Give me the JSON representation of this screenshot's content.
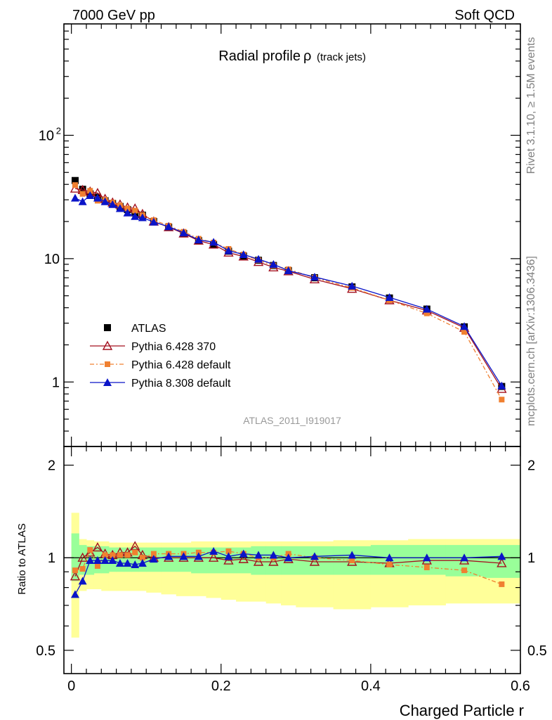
{
  "header": {
    "left_label": "7000 GeV pp",
    "right_label": "Soft QCD"
  },
  "side_labels": {
    "rivet": "Rivet 3.1.10, ≥ 1.5M events",
    "mcplots": "mcplots.cern.ch [arXiv:1306.3436]"
  },
  "analysis_id": "ATLAS_2011_I919017",
  "chart_data": [
    {
      "panel": "main",
      "type": "line",
      "title": "Radial profile",
      "title_symbol": "ρ",
      "title_suffix": "(track jets)",
      "y_scale": "log",
      "ylim": [
        0.3,
        800
      ],
      "xlim": [
        -0.01,
        0.6
      ],
      "y_tick_labels": [
        "1",
        "10",
        "10²"
      ],
      "legend_position": "middle-left",
      "x": [
        0.005,
        0.015,
        0.025,
        0.035,
        0.045,
        0.055,
        0.065,
        0.075,
        0.085,
        0.095,
        0.11,
        0.13,
        0.15,
        0.17,
        0.19,
        0.21,
        0.23,
        0.25,
        0.27,
        0.29,
        0.325,
        0.375,
        0.425,
        0.475,
        0.525,
        0.575
      ],
      "series": [
        {
          "name": "ATLAS",
          "color": "#000000",
          "marker": "square",
          "values": [
            43.0,
            36.5,
            33.5,
            31.5,
            29.5,
            28.0,
            26.5,
            25.0,
            23.5,
            22.5,
            20.0,
            18.0,
            16.0,
            14.0,
            13.0,
            11.5,
            10.5,
            9.7,
            8.8,
            8.0,
            7.0,
            5.9,
            4.8,
            3.9,
            2.8,
            0.92
          ]
        },
        {
          "name": "Pythia 6.428 370",
          "color": "#a3101f",
          "marker": "open-triangle",
          "values": [
            37.0,
            36.0,
            35.0,
            34.0,
            30.5,
            28.5,
            27.5,
            26.0,
            25.5,
            23.0,
            20.0,
            18.0,
            16.0,
            14.0,
            13.0,
            11.2,
            10.4,
            9.4,
            8.5,
            7.9,
            6.8,
            5.7,
            4.6,
            3.8,
            2.75,
            0.88
          ]
        },
        {
          "name": "Pythia 6.428 default",
          "color": "#f08030",
          "marker": "square-small",
          "values": [
            39.5,
            33.5,
            35.5,
            29.5,
            30.0,
            28.5,
            27.0,
            25.5,
            24.5,
            22.5,
            20.5,
            18.5,
            16.5,
            14.5,
            13.5,
            12.0,
            10.8,
            9.7,
            8.8,
            8.2,
            7.0,
            5.8,
            4.6,
            3.6,
            2.55,
            0.72
          ]
        },
        {
          "name": "Pythia 8.308 default",
          "color": "#0a14c8",
          "marker": "triangle",
          "values": [
            31.0,
            29.0,
            32.5,
            31.0,
            29.0,
            27.5,
            25.5,
            23.5,
            22.0,
            21.5,
            19.8,
            18.2,
            16.2,
            14.2,
            13.6,
            11.6,
            10.8,
            9.9,
            9.0,
            8.0,
            7.1,
            6.0,
            4.85,
            3.9,
            2.82,
            0.93
          ]
        }
      ]
    },
    {
      "panel": "ratio",
      "type": "line",
      "ylabel": "Ratio to ATLAS",
      "xlabel": "Charged Particle r",
      "ylim": [
        0.42,
        2.3
      ],
      "xlim": [
        -0.01,
        0.6
      ],
      "x_tick_labels": [
        "0",
        "0.2",
        "0.4",
        "0.6"
      ],
      "y_tick_labels": [
        "0.5",
        "1",
        "2"
      ],
      "x_edges": [
        0.0,
        0.01,
        0.02,
        0.03,
        0.04,
        0.05,
        0.06,
        0.07,
        0.08,
        0.09,
        0.1,
        0.12,
        0.14,
        0.16,
        0.18,
        0.2,
        0.22,
        0.24,
        0.26,
        0.28,
        0.3,
        0.35,
        0.4,
        0.45,
        0.5,
        0.55,
        0.6
      ],
      "band_inner_low": [
        0.84,
        0.88,
        0.88,
        0.89,
        0.89,
        0.9,
        0.9,
        0.9,
        0.9,
        0.9,
        0.9,
        0.9,
        0.9,
        0.89,
        0.89,
        0.89,
        0.89,
        0.88,
        0.88,
        0.88,
        0.88,
        0.88,
        0.88,
        0.88,
        0.87,
        0.86
      ],
      "band_inner_high": [
        1.2,
        1.1,
        1.09,
        1.09,
        1.09,
        1.08,
        1.08,
        1.08,
        1.08,
        1.08,
        1.08,
        1.08,
        1.08,
        1.08,
        1.08,
        1.08,
        1.08,
        1.09,
        1.09,
        1.09,
        1.09,
        1.09,
        1.1,
        1.1,
        1.1,
        1.1
      ],
      "band_outer_low": [
        0.55,
        0.78,
        0.79,
        0.79,
        0.78,
        0.78,
        0.78,
        0.78,
        0.78,
        0.78,
        0.77,
        0.76,
        0.75,
        0.75,
        0.74,
        0.73,
        0.72,
        0.72,
        0.71,
        0.7,
        0.69,
        0.68,
        0.69,
        0.7,
        0.71,
        0.71
      ],
      "band_outer_high": [
        1.4,
        1.15,
        1.14,
        1.13,
        1.13,
        1.12,
        1.12,
        1.12,
        1.12,
        1.12,
        1.12,
        1.12,
        1.12,
        1.13,
        1.13,
        1.13,
        1.13,
        1.13,
        1.13,
        1.13,
        1.13,
        1.14,
        1.14,
        1.15,
        1.15,
        1.15
      ],
      "x": [
        0.005,
        0.015,
        0.025,
        0.035,
        0.045,
        0.055,
        0.065,
        0.075,
        0.085,
        0.095,
        0.11,
        0.13,
        0.15,
        0.17,
        0.19,
        0.21,
        0.23,
        0.25,
        0.27,
        0.29,
        0.325,
        0.375,
        0.425,
        0.475,
        0.525,
        0.575
      ],
      "series": [
        {
          "name": "ATLAS",
          "color": "#000000",
          "values": [
            1,
            1,
            1,
            1,
            1,
            1,
            1,
            1,
            1,
            1,
            1,
            1,
            1,
            1,
            1,
            1,
            1,
            1,
            1,
            1,
            1,
            1,
            1,
            1,
            1,
            1
          ]
        },
        {
          "name": "Pythia 6.428 370",
          "color": "#a3101f",
          "values": [
            0.87,
            1.0,
            1.04,
            1.08,
            1.03,
            1.02,
            1.04,
            1.04,
            1.09,
            1.02,
            1.0,
            1.0,
            1.0,
            1.0,
            1.0,
            0.98,
            0.99,
            0.97,
            0.97,
            0.99,
            0.97,
            0.97,
            0.96,
            0.98,
            0.98,
            0.96
          ]
        },
        {
          "name": "Pythia 6.428 default",
          "color": "#f08030",
          "values": [
            0.91,
            0.92,
            1.06,
            0.94,
            1.02,
            1.02,
            1.02,
            1.02,
            1.04,
            1.0,
            1.03,
            1.03,
            1.03,
            1.04,
            1.04,
            1.05,
            1.03,
            1.0,
            1.0,
            1.03,
            1.0,
            0.98,
            0.95,
            0.93,
            0.91,
            0.82
          ]
        },
        {
          "name": "Pythia 8.308 default",
          "color": "#0a14c8",
          "values": [
            0.76,
            0.84,
            0.98,
            0.98,
            0.98,
            0.98,
            0.96,
            0.96,
            0.95,
            0.96,
            0.99,
            1.01,
            1.01,
            1.01,
            1.05,
            1.01,
            1.03,
            1.02,
            1.02,
            1.0,
            1.01,
            1.02,
            1.0,
            1.0,
            1.0,
            1.01
          ]
        }
      ]
    }
  ]
}
